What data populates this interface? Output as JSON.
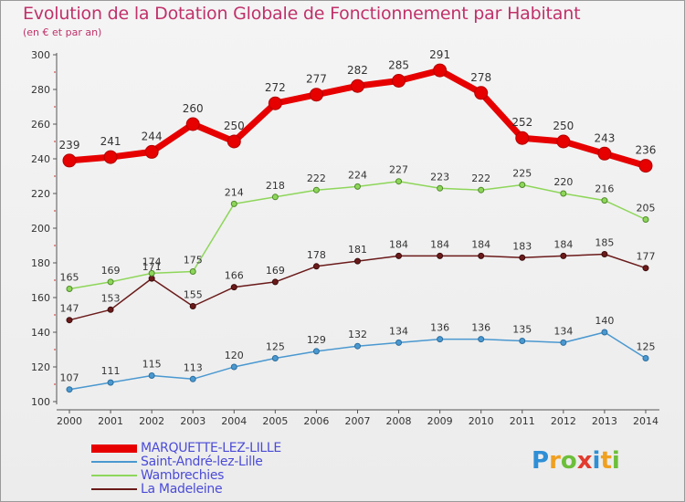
{
  "chart_data": {
    "type": "line",
    "title": "Evolution de la Dotation Globale de Fonctionnement par Habitant",
    "subtitle": "(en € et par an)",
    "xlabel": "",
    "ylabel": "",
    "ylim": [
      100,
      300
    ],
    "yticks": [
      100,
      120,
      140,
      160,
      180,
      200,
      220,
      240,
      260,
      280,
      300
    ],
    "categories": [
      "2000",
      "2001",
      "2002",
      "2003",
      "2004",
      "2005",
      "2006",
      "2007",
      "2008",
      "2009",
      "2010",
      "2011",
      "2012",
      "2013",
      "2014"
    ],
    "grid": false,
    "legend_position": "bottom-left",
    "series": [
      {
        "name": "MARQUETTE-LEZ-LILLE",
        "color": "#e60000",
        "values": [
          239,
          241,
          244,
          260,
          250,
          272,
          277,
          282,
          285,
          291,
          278,
          252,
          250,
          243,
          236
        ]
      },
      {
        "name": "Saint-André-lez-Lille",
        "color": "#4a98d0",
        "values": [
          107,
          111,
          115,
          113,
          120,
          125,
          129,
          132,
          134,
          136,
          136,
          135,
          134,
          140,
          125
        ]
      },
      {
        "name": "Wambrechies",
        "color": "#8ed65a",
        "values": [
          165,
          169,
          174,
          175,
          214,
          218,
          222,
          224,
          227,
          223,
          222,
          225,
          220,
          216,
          205
        ]
      },
      {
        "name": "La Madeleine",
        "color": "#6b1a1a",
        "values": [
          147,
          153,
          171,
          155,
          166,
          169,
          178,
          181,
          184,
          184,
          184,
          183,
          184,
          185,
          177
        ]
      }
    ]
  },
  "labels": {
    "wambrechies_2002_label": "174",
    "madeleine_2002_label": "171"
  },
  "logo": {
    "letters": [
      "P",
      "r",
      "o",
      "x",
      "i",
      "t",
      "i"
    ]
  }
}
